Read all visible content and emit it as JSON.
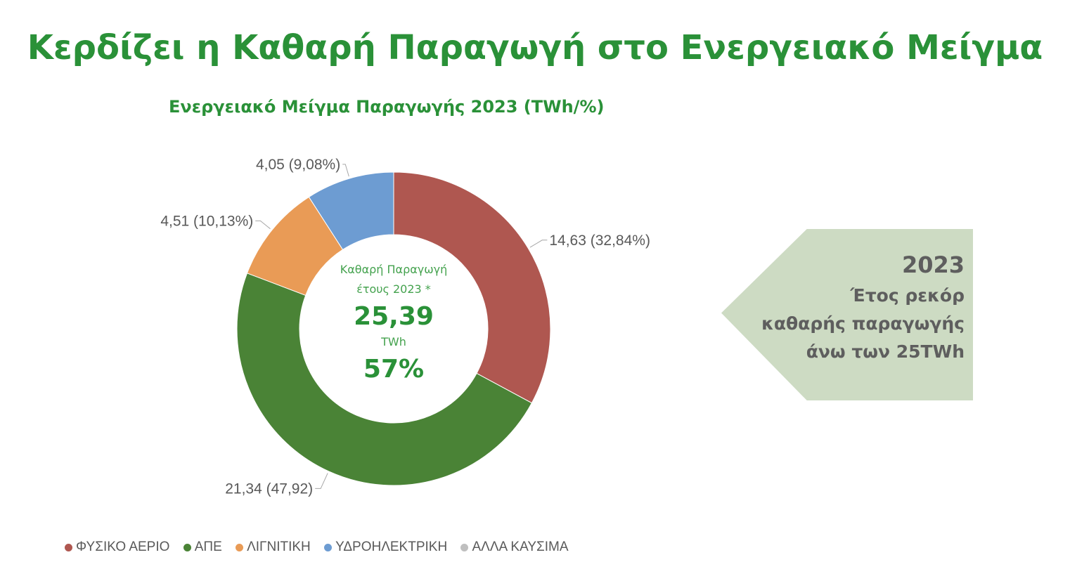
{
  "header": {
    "title": "Κερδίζει η Καθαρή Παραγωγή στο Ενεργειακό Μείγμα"
  },
  "chart_data": {
    "type": "pie",
    "title": "Ενεργειακό Μείγμα Παραγωγής 2023 (TWh/%)",
    "donut": true,
    "slices": [
      {
        "name": "ΦΥΣΙΚΟ ΑΕΡΙΟ",
        "value": 14.63,
        "percent": 32.84,
        "label": "14,63 (32,84%)",
        "color": "#af5750"
      },
      {
        "name": "ΑΠΕ",
        "value": 21.34,
        "percent": 47.92,
        "label": "21,34 (47,92)",
        "color": "#4a8336"
      },
      {
        "name": "ΛΙΓΝΙΤΙΚΗ",
        "value": 4.51,
        "percent": 10.13,
        "label": "4,51 (10,13%)",
        "color": "#e99b56"
      },
      {
        "name": "ΥΔΡΟΗΛΕΚΤΡΙΚΗ",
        "value": 4.05,
        "percent": 9.08,
        "label": "4,05 (9,08%)",
        "color": "#6d9cd2"
      },
      {
        "name": "ΑΛΛΑ ΚΑΥΣΙΜΑ",
        "value": 0,
        "percent": 0,
        "label": "",
        "color": "#bfbfbf"
      }
    ],
    "legend_position": "bottom-left",
    "center": {
      "caption_line1": "Καθαρή Παραγωγή",
      "caption_line2": "έτους 2023 *",
      "value": "25,39",
      "unit": "TWh",
      "percent": "57%"
    }
  },
  "callout": {
    "year": "2023",
    "line1": "Έτος ρεκόρ",
    "line2": "καθαρής παραγωγής",
    "line3": "άνω των 25TWh"
  }
}
